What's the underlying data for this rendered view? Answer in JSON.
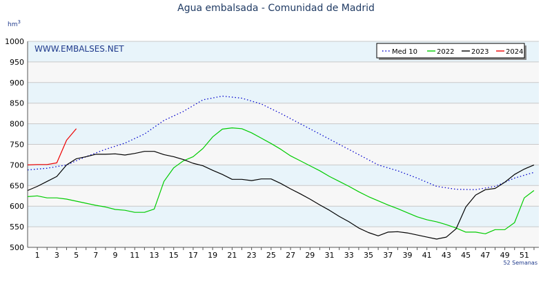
{
  "chart_data": {
    "type": "line",
    "title": "Agua embalsada - Comunidad de Madrid",
    "ylabel": "hm",
    "ylabel_sup": "3",
    "xlabel": "52 Semanas",
    "watermark": "WWW.EMBALSES.NET",
    "xlim": [
      0,
      52.5
    ],
    "ylim": [
      500,
      1000
    ],
    "x_ticks": [
      1,
      3,
      5,
      7,
      9,
      11,
      13,
      15,
      17,
      19,
      21,
      23,
      25,
      27,
      29,
      31,
      33,
      35,
      37,
      39,
      41,
      43,
      45,
      47,
      49,
      51
    ],
    "y_ticks": [
      500,
      550,
      600,
      650,
      700,
      750,
      800,
      850,
      900,
      950,
      1000
    ],
    "grid": true,
    "legend_position": "top-right",
    "colors": {
      "band_light": "#e8f4fa",
      "band_white": "#f7f7f7",
      "grid": "#c8c8c8",
      "text": "#000000",
      "title": "#1f3a63",
      "watermark": "#1f3a8c",
      "axis_note": "#1f3a8c"
    },
    "series": [
      {
        "name": "Med 10",
        "color": "#0000cc",
        "dashed": true,
        "x": [
          0,
          2,
          4,
          6,
          8,
          10,
          12,
          14,
          16,
          18,
          20,
          22,
          24,
          26,
          28,
          30,
          32,
          34,
          36,
          38,
          40,
          42,
          44,
          46,
          48,
          50,
          52
        ],
        "y": [
          688,
          692,
          700,
          720,
          738,
          753,
          775,
          808,
          830,
          858,
          867,
          862,
          848,
          825,
          800,
          775,
          750,
          725,
          700,
          686,
          668,
          648,
          641,
          640,
          648,
          668,
          682
        ]
      },
      {
        "name": "2022",
        "color": "#00cc00",
        "dashed": false,
        "x": [
          0,
          1,
          2,
          3,
          4,
          5,
          6,
          7,
          8,
          9,
          10,
          11,
          12,
          13,
          14,
          15,
          16,
          17,
          18,
          19,
          20,
          21,
          22,
          23,
          24,
          25,
          26,
          27,
          28,
          29,
          30,
          31,
          32,
          33,
          34,
          35,
          36,
          37,
          38,
          39,
          40,
          41,
          42,
          43,
          44,
          45,
          46,
          47,
          48,
          49,
          50,
          51,
          52
        ],
        "y": [
          623,
          625,
          620,
          620,
          617,
          612,
          607,
          602,
          598,
          592,
          590,
          585,
          585,
          593,
          660,
          693,
          710,
          720,
          740,
          768,
          787,
          790,
          788,
          778,
          765,
          752,
          738,
          722,
          710,
          698,
          686,
          672,
          660,
          648,
          635,
          623,
          613,
          603,
          594,
          584,
          574,
          567,
          562,
          555,
          547,
          537,
          537,
          533,
          543,
          543,
          560,
          620,
          638
        ]
      },
      {
        "name": "2023",
        "color": "#000000",
        "dashed": false,
        "x": [
          0,
          1,
          2,
          3,
          4,
          5,
          6,
          7,
          8,
          9,
          10,
          11,
          12,
          13,
          14,
          15,
          16,
          17,
          18,
          19,
          20,
          21,
          22,
          23,
          24,
          25,
          26,
          27,
          28,
          29,
          30,
          31,
          32,
          33,
          34,
          35,
          36,
          37,
          38,
          39,
          40,
          41,
          42,
          43,
          44,
          45,
          46,
          47,
          48,
          49,
          50,
          51,
          52
        ],
        "y": [
          638,
          648,
          660,
          672,
          700,
          715,
          720,
          726,
          726,
          727,
          724,
          728,
          733,
          733,
          725,
          720,
          713,
          704,
          698,
          687,
          677,
          665,
          665,
          662,
          666,
          666,
          655,
          642,
          630,
          617,
          603,
          590,
          575,
          562,
          547,
          536,
          528,
          537,
          538,
          535,
          530,
          525,
          520,
          525,
          545,
          598,
          627,
          640,
          643,
          658,
          677,
          690,
          700
        ]
      },
      {
        "name": "2024",
        "color": "#ee0000",
        "dashed": false,
        "x": [
          0,
          1,
          2,
          3,
          4,
          5
        ],
        "y": [
          700,
          701,
          701,
          705,
          760,
          788
        ]
      }
    ]
  }
}
